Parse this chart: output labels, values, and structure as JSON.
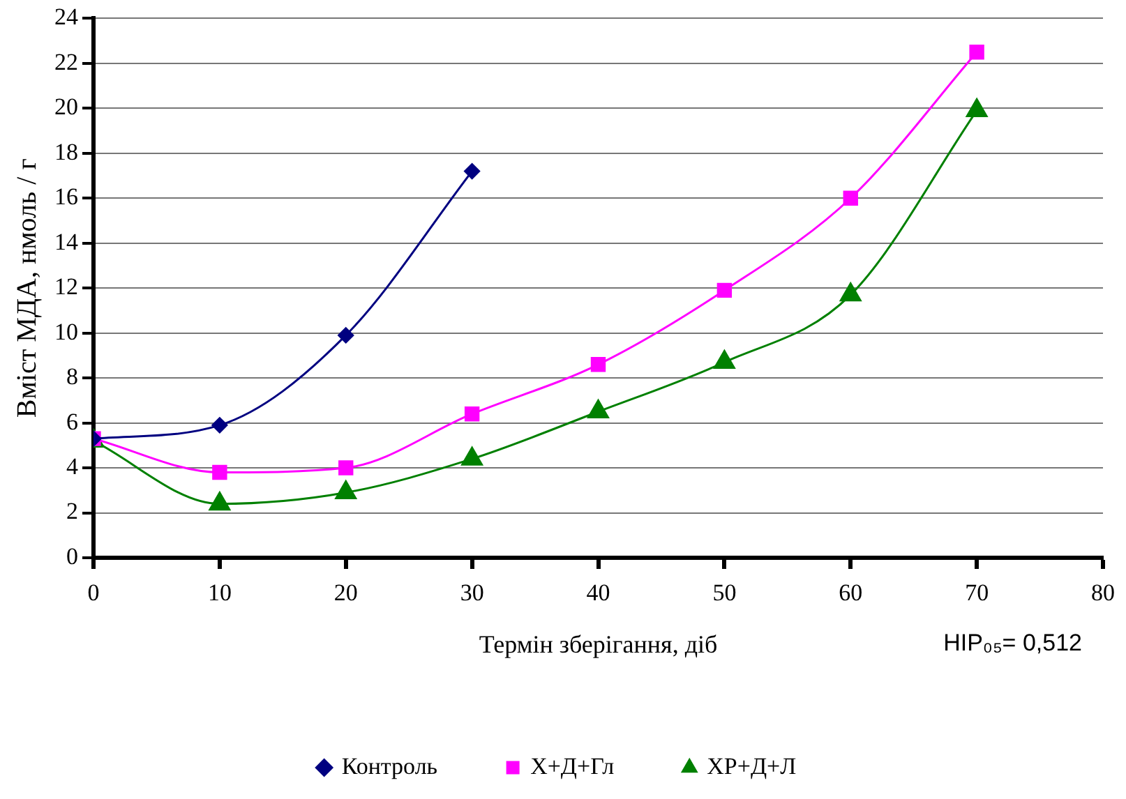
{
  "chart_data": {
    "type": "line",
    "xlabel": "Термін зберігання, діб",
    "ylabel": "Вміст МДА, нмоль / г",
    "x": [
      0,
      10,
      20,
      30,
      40,
      50,
      60,
      70
    ],
    "series": [
      {
        "name": "Контроль",
        "color": "#000080",
        "marker": "diamond",
        "values": [
          5.3,
          5.9,
          9.9,
          17.2,
          null,
          null,
          null,
          null
        ]
      },
      {
        "name": "Х+Д+Гл",
        "color": "#ff00ff",
        "marker": "square",
        "values": [
          5.3,
          3.8,
          4.0,
          6.4,
          8.6,
          11.9,
          16.0,
          22.5
        ]
      },
      {
        "name": "ХР+Д+Л",
        "color": "#008000",
        "marker": "triangle",
        "values": [
          5.2,
          2.4,
          2.9,
          4.4,
          6.5,
          8.7,
          11.7,
          19.9
        ]
      }
    ],
    "xlim": [
      0,
      80
    ],
    "xticks": [
      0,
      10,
      20,
      30,
      40,
      50,
      60,
      70,
      80
    ],
    "ylim": [
      0,
      24
    ],
    "yticks": [
      0,
      2,
      4,
      6,
      8,
      10,
      12,
      14,
      16,
      18,
      20,
      22,
      24
    ],
    "grid": "y",
    "legend": "bottom",
    "line_style": "solid",
    "annotations": [
      "НІР₀₅= 0,512"
    ]
  }
}
